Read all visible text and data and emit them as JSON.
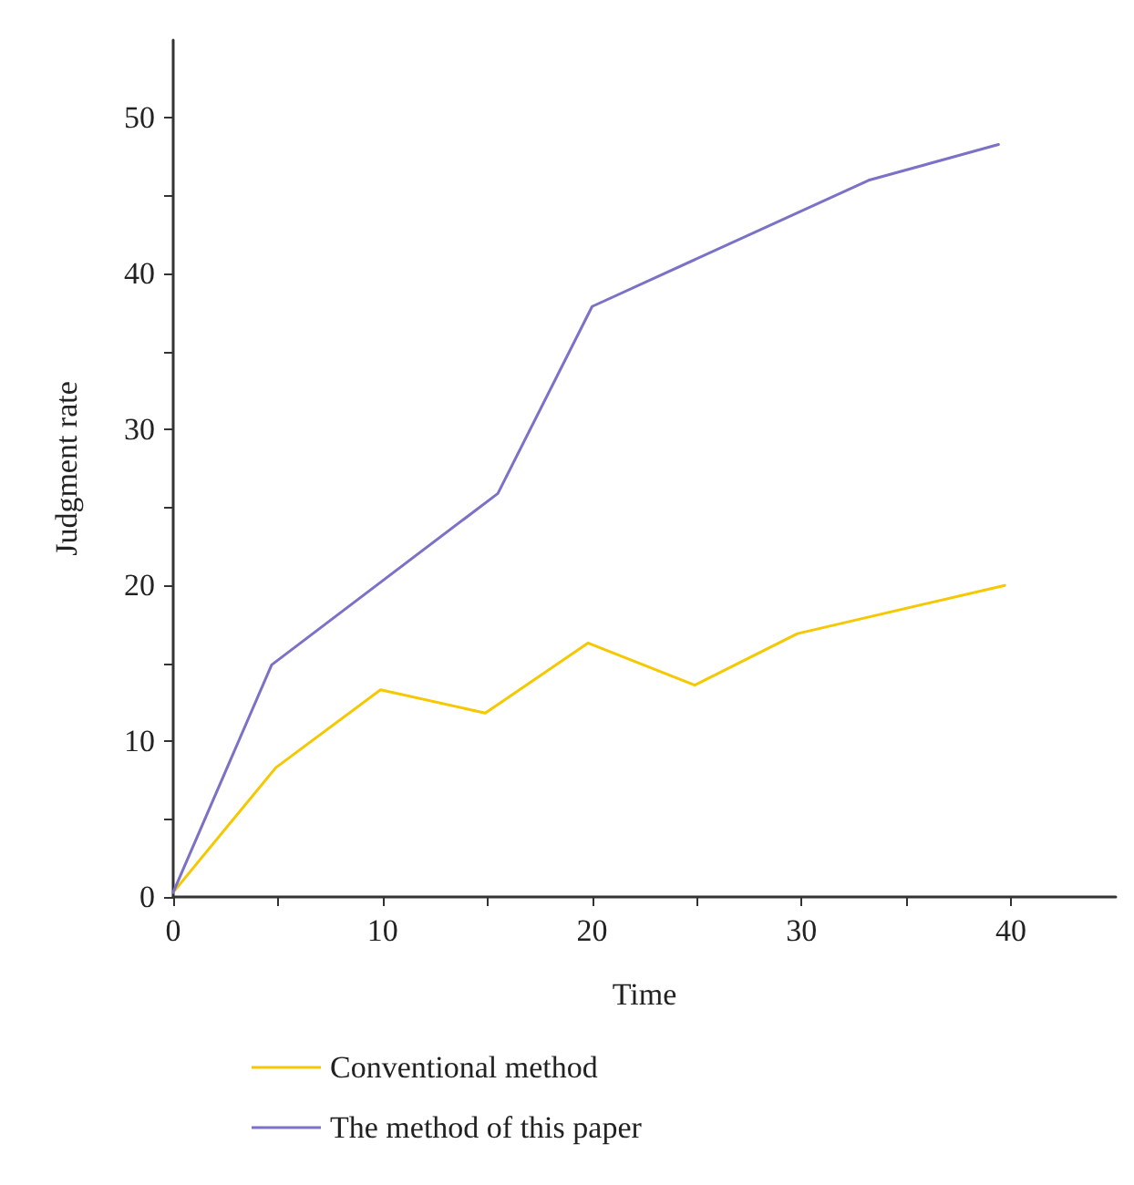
{
  "chart_data": {
    "type": "line",
    "xlabel": "Time",
    "ylabel": "Judgment rate",
    "xlim": [
      0,
      45
    ],
    "ylim": [
      0,
      55
    ],
    "xticks": [
      0,
      {
        "value": 5,
        "label": null
      },
      10,
      {
        "value": 15,
        "label": null
      },
      20,
      {
        "value": 25,
        "label": null
      },
      30,
      {
        "value": 35,
        "label": null
      },
      40
    ],
    "yticks": [
      0,
      {
        "value": 5,
        "label": null
      },
      10,
      {
        "value": 15,
        "label": null
      },
      20,
      {
        "value": 25,
        "label": null
      },
      30,
      {
        "value": 35,
        "label": null
      },
      40,
      {
        "value": 45,
        "label": null
      },
      50
    ],
    "grid": false,
    "legend": "bottom",
    "marker": "none",
    "line_style": "solid",
    "series": [
      {
        "name": "Conventional method",
        "color": "#f5c800",
        "x": [
          0,
          4.9,
          9.9,
          14.9,
          19.8,
          24.9,
          29.8,
          39.7
        ],
        "values": [
          0.3,
          8.3,
          13.3,
          11.8,
          16.3,
          13.6,
          16.9,
          20.0
        ]
      },
      {
        "name": "The method of this paper",
        "color": "#7b72c8",
        "x": [
          0,
          4.7,
          15.5,
          20.0,
          33.2,
          39.4
        ],
        "values": [
          0.3,
          14.9,
          25.9,
          37.9,
          46.0,
          48.3
        ]
      }
    ]
  }
}
